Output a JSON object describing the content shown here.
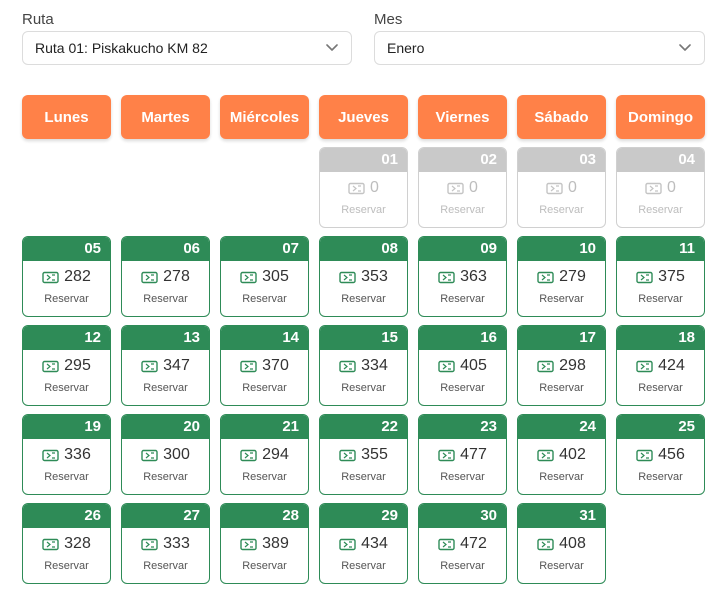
{
  "ruta": {
    "label": "Ruta",
    "value": "Ruta 01: Piskakucho KM 82"
  },
  "mes": {
    "label": "Mes",
    "value": "Enero"
  },
  "weekdays": [
    "Lunes",
    "Martes",
    "Miércoles",
    "Jueves",
    "Viernes",
    "Sábado",
    "Domingo"
  ],
  "reserve_label": "Reservar",
  "colors": {
    "header": "#ff8148",
    "active": "#2e8b57",
    "disabled": "#c9c9c9"
  },
  "days": [
    {
      "day": "01",
      "seats": "0",
      "disabled": true
    },
    {
      "day": "02",
      "seats": "0",
      "disabled": true
    },
    {
      "day": "03",
      "seats": "0",
      "disabled": true
    },
    {
      "day": "04",
      "seats": "0",
      "disabled": true
    },
    {
      "day": "05",
      "seats": "282"
    },
    {
      "day": "06",
      "seats": "278"
    },
    {
      "day": "07",
      "seats": "305"
    },
    {
      "day": "08",
      "seats": "353"
    },
    {
      "day": "09",
      "seats": "363"
    },
    {
      "day": "10",
      "seats": "279"
    },
    {
      "day": "11",
      "seats": "375"
    },
    {
      "day": "12",
      "seats": "295"
    },
    {
      "day": "13",
      "seats": "347"
    },
    {
      "day": "14",
      "seats": "370"
    },
    {
      "day": "15",
      "seats": "334"
    },
    {
      "day": "16",
      "seats": "405"
    },
    {
      "day": "17",
      "seats": "298"
    },
    {
      "day": "18",
      "seats": "424"
    },
    {
      "day": "19",
      "seats": "336"
    },
    {
      "day": "20",
      "seats": "300"
    },
    {
      "day": "21",
      "seats": "294"
    },
    {
      "day": "22",
      "seats": "355"
    },
    {
      "day": "23",
      "seats": "477"
    },
    {
      "day": "24",
      "seats": "402"
    },
    {
      "day": "25",
      "seats": "456"
    },
    {
      "day": "26",
      "seats": "328"
    },
    {
      "day": "27",
      "seats": "333"
    },
    {
      "day": "28",
      "seats": "389"
    },
    {
      "day": "29",
      "seats": "434"
    },
    {
      "day": "30",
      "seats": "472"
    },
    {
      "day": "31",
      "seats": "408"
    }
  ]
}
